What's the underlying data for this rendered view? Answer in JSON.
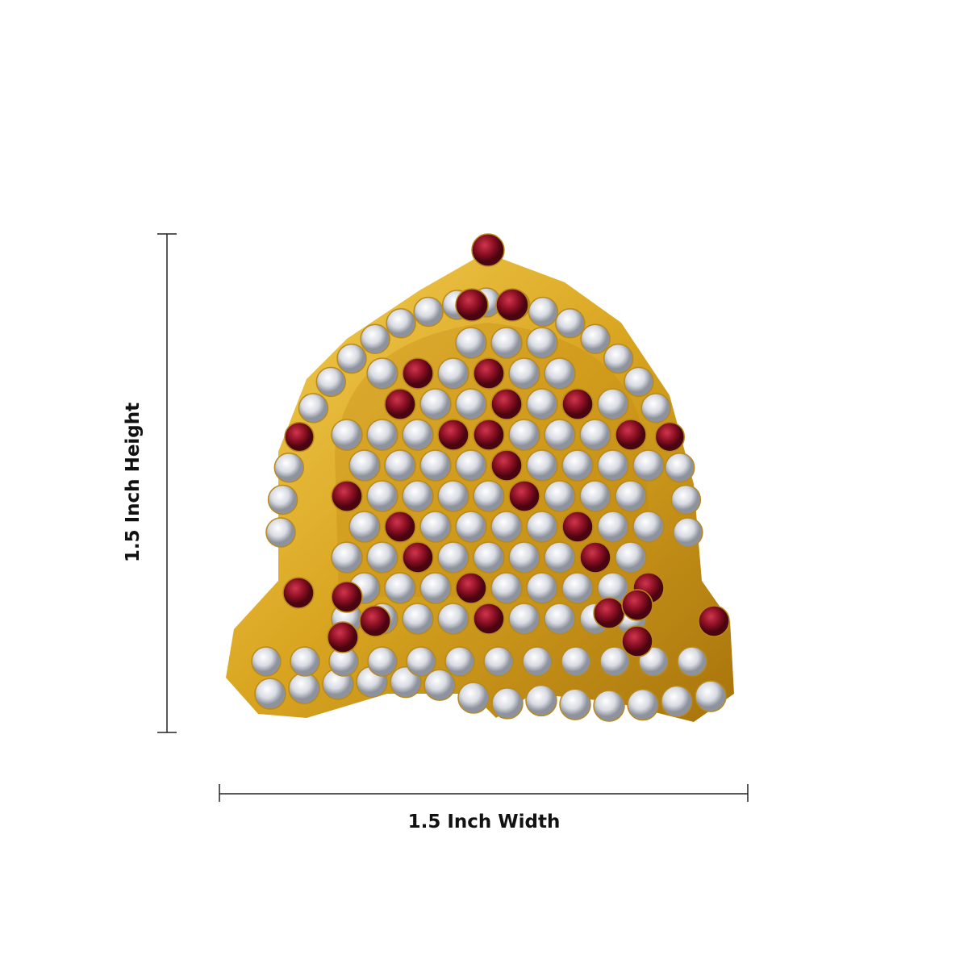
{
  "dimensions": {
    "height_label": "1.5 Inch Height",
    "width_label": "1.5 Inch Width"
  },
  "product": {
    "description_icon": "crown-jewel-photo",
    "colors": {
      "gold": "#d9a520",
      "ruby": "#8a0f22",
      "crystal": "#e6e8ee",
      "line": "#222222"
    }
  }
}
